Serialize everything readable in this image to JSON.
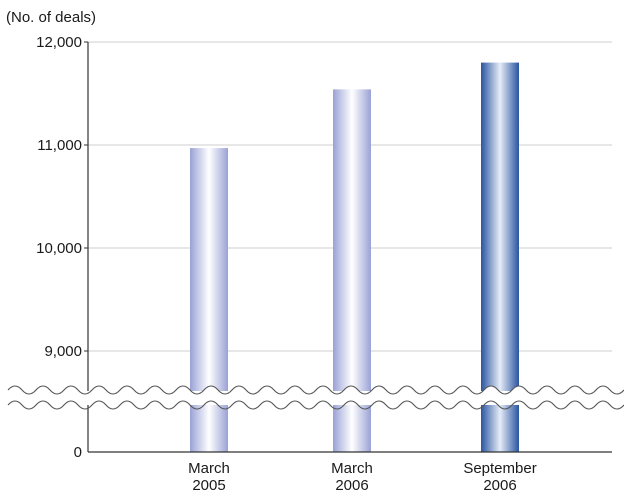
{
  "chart_data": {
    "type": "bar",
    "unit_label": "(No. of deals)",
    "categories": [
      [
        "March",
        "2005"
      ],
      [
        "March",
        "2006"
      ],
      [
        "September",
        "2006"
      ]
    ],
    "values": [
      10970,
      11540,
      11800
    ],
    "y_ticks": [
      "12,000",
      "11,000",
      "10,000",
      "9,000",
      "0"
    ],
    "y_tick_values": [
      12000,
      11000,
      10000,
      9000,
      0
    ],
    "axis_break": true,
    "ylim_upper": [
      8500,
      12000
    ],
    "grid": true,
    "highlighted_index": 2,
    "colors": {
      "bar_light_edge": "#9aa2d6",
      "bar_light_center": "#ffffff",
      "bar_dark_edge": "#2a55a0",
      "bar_dark_center": "#e6ecf8",
      "grid": "#cfcfcf",
      "axis": "#333333"
    }
  }
}
